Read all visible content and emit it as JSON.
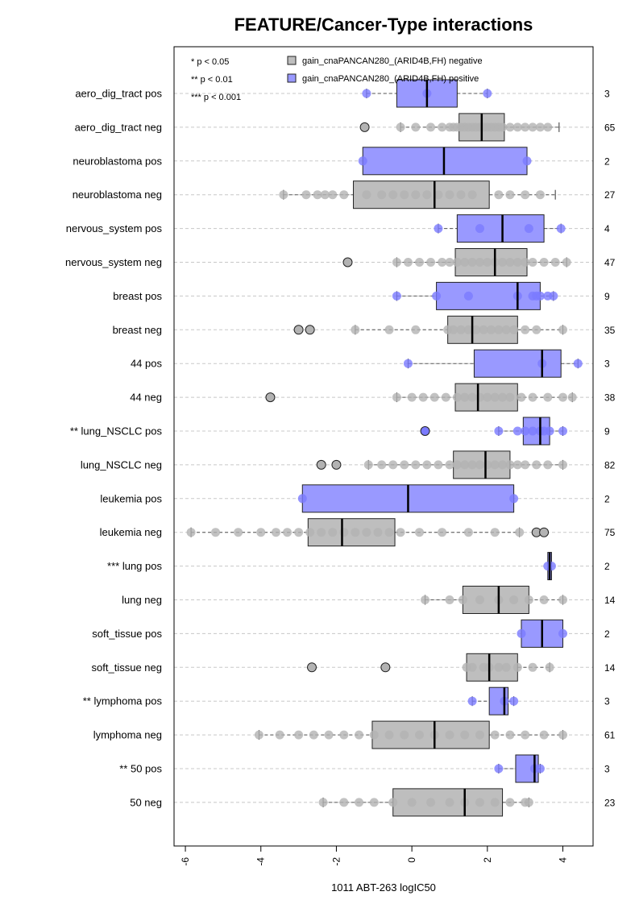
{
  "chart_data": {
    "type": "box",
    "title": "FEATURE/Cancer-Type interactions",
    "xlabel": "1011 ABT-263 logIC50",
    "ylabel": "",
    "xlim": [
      -6.3,
      4.8
    ],
    "xticks": [
      -6,
      -4,
      -2,
      0,
      2,
      4
    ],
    "grid": "horizontal dashed",
    "orientation": "horizontal",
    "legend": {
      "placement": "top-left",
      "significance": [
        "* p < 0.05",
        "** p < 0.01",
        "*** p < 0.001"
      ],
      "series": [
        {
          "name": "gain_cnaPANCAN280_(ARID4B,FH) negative",
          "color": "#bebebe"
        },
        {
          "name": "gain_cnaPANCAN280_(ARID4B,FH) positive",
          "color": "#9999ff"
        }
      ]
    },
    "colors": {
      "negative": "#bebebe",
      "positive": "#9999ff",
      "neg_point": "#b3b3b3",
      "pos_point": "#7b7bff"
    },
    "groups": [
      {
        "label": "aero_dig_tract pos",
        "type": "pos",
        "n": "3",
        "whisker_low": -1.2,
        "q1": -0.4,
        "median": 0.4,
        "q3": 1.2,
        "whisker_high": 2.0,
        "outliers": [],
        "points": [
          -1.2,
          0.4,
          2.0
        ]
      },
      {
        "label": "aero_dig_tract neg",
        "type": "neg",
        "n": "65",
        "whisker_low": -0.3,
        "q1": 1.25,
        "median": 1.85,
        "q3": 2.45,
        "whisker_high": 3.9,
        "outliers": [
          -1.25
        ],
        "points": [
          -0.3,
          0.1,
          0.5,
          0.8,
          1.0,
          1.1,
          1.2,
          1.3,
          1.4,
          1.5,
          1.6,
          1.7,
          1.8,
          1.9,
          2.0,
          2.1,
          2.2,
          2.3,
          2.4,
          2.6,
          2.8,
          3.0,
          3.2,
          3.4,
          3.6
        ]
      },
      {
        "label": "neuroblastoma pos",
        "type": "pos",
        "n": "2",
        "whisker_low": -1.3,
        "q1": -1.3,
        "median": 0.85,
        "q3": 3.05,
        "whisker_high": 3.05,
        "outliers": [],
        "points": [
          -1.3,
          3.05
        ]
      },
      {
        "label": "neuroblastoma neg",
        "type": "neg",
        "n": "27",
        "whisker_low": -3.4,
        "q1": -1.55,
        "median": 0.6,
        "q3": 2.05,
        "whisker_high": 3.8,
        "outliers": [],
        "points": [
          -3.4,
          -2.8,
          -2.5,
          -2.3,
          -2.1,
          -1.8,
          -1.2,
          -0.8,
          -0.5,
          -0.2,
          0.1,
          0.4,
          0.7,
          1.0,
          1.3,
          1.6,
          2.3,
          2.6,
          3.0,
          3.4
        ]
      },
      {
        "label": "nervous_system pos",
        "type": "pos",
        "n": "4",
        "whisker_low": 0.7,
        "q1": 1.2,
        "median": 2.4,
        "q3": 3.5,
        "whisker_high": 3.95,
        "outliers": [],
        "points": [
          0.7,
          1.8,
          3.1,
          3.95
        ]
      },
      {
        "label": "nervous_system neg",
        "type": "neg",
        "n": "47",
        "whisker_low": -0.4,
        "q1": 1.15,
        "median": 2.2,
        "q3": 3.05,
        "whisker_high": 4.1,
        "outliers": [
          -1.7
        ],
        "points": [
          -0.4,
          -0.1,
          0.2,
          0.5,
          0.8,
          1.0,
          1.2,
          1.4,
          1.6,
          1.8,
          2.0,
          2.2,
          2.4,
          2.6,
          2.8,
          3.0,
          3.2,
          3.5,
          3.8,
          4.1
        ]
      },
      {
        "label": "breast pos",
        "type": "pos",
        "n": "9",
        "whisker_low": -0.4,
        "q1": 0.65,
        "median": 2.8,
        "q3": 3.4,
        "whisker_high": 3.75,
        "outliers": [],
        "points": [
          -0.4,
          0.65,
          1.5,
          2.8,
          3.2,
          3.4,
          3.6,
          3.75,
          3.3
        ]
      },
      {
        "label": "breast neg",
        "type": "neg",
        "n": "35",
        "whisker_low": -1.5,
        "q1": 0.95,
        "median": 1.6,
        "q3": 2.8,
        "whisker_high": 4.0,
        "outliers": [
          -3.0,
          -2.7
        ],
        "points": [
          -1.5,
          -0.6,
          0.1,
          0.95,
          1.1,
          1.3,
          1.5,
          1.7,
          1.9,
          2.1,
          2.3,
          2.5,
          2.7,
          3.0,
          3.3,
          4.0
        ]
      },
      {
        "label": "44 pos",
        "type": "pos",
        "n": "3",
        "whisker_low": -0.1,
        "q1": 1.65,
        "median": 3.45,
        "q3": 3.95,
        "whisker_high": 4.4,
        "outliers": [],
        "points": [
          -0.1,
          3.45,
          4.4
        ]
      },
      {
        "label": "44 neg",
        "type": "neg",
        "n": "38",
        "whisker_low": -0.4,
        "q1": 1.15,
        "median": 1.75,
        "q3": 2.8,
        "whisker_high": 4.25,
        "outliers": [
          -3.75
        ],
        "points": [
          -0.4,
          0.0,
          0.3,
          0.6,
          0.9,
          1.2,
          1.4,
          1.6,
          1.8,
          2.0,
          2.2,
          2.4,
          2.6,
          2.9,
          3.2,
          3.6,
          4.0,
          4.25
        ]
      },
      {
        "label": "** lung_NSCLC pos",
        "type": "pos",
        "n": "9",
        "whisker_low": 2.3,
        "q1": 2.95,
        "median": 3.4,
        "q3": 3.65,
        "whisker_high": 4.0,
        "outliers": [
          0.35
        ],
        "points": [
          2.3,
          2.8,
          3.0,
          3.2,
          3.4,
          3.5,
          3.65,
          4.0
        ]
      },
      {
        "label": "lung_NSCLC neg",
        "type": "neg",
        "n": "82",
        "whisker_low": -1.15,
        "q1": 1.1,
        "median": 1.95,
        "q3": 2.6,
        "whisker_high": 4.0,
        "outliers": [
          -2.4,
          -2.0
        ],
        "points": [
          -1.15,
          -0.8,
          -0.5,
          -0.2,
          0.1,
          0.4,
          0.7,
          1.0,
          1.2,
          1.4,
          1.6,
          1.8,
          2.0,
          2.2,
          2.4,
          2.6,
          2.8,
          3.0,
          3.3,
          3.6,
          4.0
        ]
      },
      {
        "label": "leukemia pos",
        "type": "pos",
        "n": "2",
        "whisker_low": -2.9,
        "q1": -2.9,
        "median": -0.1,
        "q3": 2.7,
        "whisker_high": 2.7,
        "outliers": [],
        "points": [
          -2.9,
          2.7
        ]
      },
      {
        "label": "leukemia neg",
        "type": "neg",
        "n": "75",
        "whisker_low": -5.85,
        "q1": -2.75,
        "median": -1.85,
        "q3": -0.45,
        "whisker_high": 2.85,
        "outliers": [
          3.3,
          3.5
        ],
        "points": [
          -5.85,
          -5.2,
          -4.6,
          -4.0,
          -3.6,
          -3.3,
          -3.0,
          -2.7,
          -2.4,
          -2.1,
          -1.8,
          -1.5,
          -1.2,
          -0.9,
          -0.6,
          -0.3,
          0.2,
          0.8,
          1.5,
          2.2,
          2.85
        ]
      },
      {
        "label": "*** lung pos",
        "type": "pos",
        "n": "2",
        "whisker_low": 3.6,
        "q1": 3.6,
        "median": 3.65,
        "q3": 3.7,
        "whisker_high": 3.7,
        "outliers": [],
        "points": [
          3.6,
          3.7
        ]
      },
      {
        "label": "lung neg",
        "type": "neg",
        "n": "14",
        "whisker_low": 0.35,
        "q1": 1.35,
        "median": 2.3,
        "q3": 3.1,
        "whisker_high": 4.0,
        "outliers": [],
        "points": [
          0.35,
          1.0,
          1.35,
          1.8,
          2.3,
          2.7,
          3.1,
          3.5,
          4.0
        ]
      },
      {
        "label": "soft_tissue pos",
        "type": "pos",
        "n": "2",
        "whisker_low": 2.9,
        "q1": 2.9,
        "median": 3.45,
        "q3": 4.0,
        "whisker_high": 4.0,
        "outliers": [],
        "points": [
          2.9,
          4.0
        ]
      },
      {
        "label": "soft_tissue neg",
        "type": "neg",
        "n": "14",
        "whisker_low": 1.45,
        "q1": 1.45,
        "median": 2.05,
        "q3": 2.8,
        "whisker_high": 3.65,
        "outliers": [
          -2.65,
          -0.7
        ],
        "points": [
          1.45,
          1.6,
          1.9,
          2.05,
          2.3,
          2.5,
          2.8,
          3.2,
          3.65
        ]
      },
      {
        "label": "** lymphoma pos",
        "type": "pos",
        "n": "3",
        "whisker_low": 1.6,
        "q1": 2.05,
        "median": 2.45,
        "q3": 2.55,
        "whisker_high": 2.7,
        "outliers": [],
        "points": [
          1.6,
          2.45,
          2.7
        ]
      },
      {
        "label": "lymphoma neg",
        "type": "neg",
        "n": "61",
        "whisker_low": -4.05,
        "q1": -1.05,
        "median": 0.6,
        "q3": 2.05,
        "whisker_high": 4.0,
        "outliers": [],
        "points": [
          -4.05,
          -3.5,
          -3.0,
          -2.6,
          -2.2,
          -1.8,
          -1.4,
          -1.0,
          -0.6,
          -0.2,
          0.2,
          0.6,
          1.0,
          1.4,
          1.8,
          2.2,
          2.6,
          3.0,
          3.5,
          4.0
        ]
      },
      {
        "label": "** 50 pos",
        "type": "pos",
        "n": "3",
        "whisker_low": 2.3,
        "q1": 2.75,
        "median": 3.25,
        "q3": 3.35,
        "whisker_high": 3.4,
        "outliers": [],
        "points": [
          2.3,
          3.25,
          3.4
        ]
      },
      {
        "label": "50 neg",
        "type": "neg",
        "n": "23",
        "whisker_low": -2.35,
        "q1": -0.5,
        "median": 1.4,
        "q3": 2.4,
        "whisker_high": 3.1,
        "outliers": [],
        "points": [
          -2.35,
          -1.8,
          -1.4,
          -1.0,
          -0.5,
          0.0,
          0.5,
          1.0,
          1.4,
          1.8,
          2.2,
          2.6,
          3.0,
          3.1
        ]
      }
    ]
  }
}
